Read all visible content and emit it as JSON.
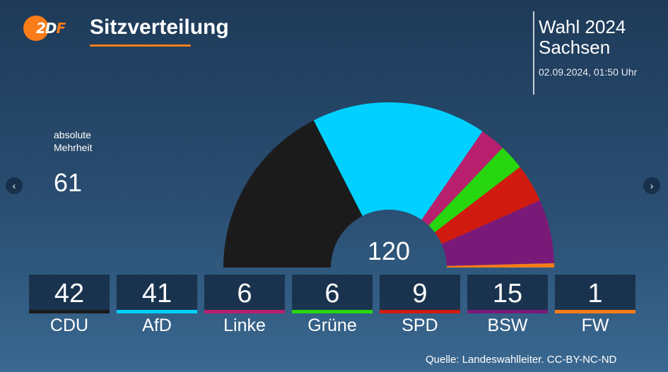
{
  "header": {
    "logo_text": "2DF",
    "title": "Sitzverteilung",
    "election_line1": "Wahl 2024",
    "election_line2": "Sachsen",
    "timestamp": "02.09.2024, 01:50 Uhr"
  },
  "majority": {
    "label_line1": "absolute",
    "label_line2": "Mehrheit",
    "value": "61"
  },
  "nav": {
    "prev_icon": "chevron-left-icon",
    "next_icon": "chevron-right-icon",
    "prev_glyph": "‹",
    "next_glyph": "›"
  },
  "chart_data": {
    "type": "pie",
    "subtype": "parliament-semicircle",
    "total_label": "120",
    "total_seats": 120,
    "categories": [
      "CDU",
      "AfD",
      "Linke",
      "Grüne",
      "SPD",
      "BSW",
      "FW"
    ],
    "values": [
      42,
      41,
      6,
      6,
      9,
      15,
      1
    ],
    "colors": [
      "#1b1b1b",
      "#00d0ff",
      "#b8206e",
      "#27d60f",
      "#d21b10",
      "#7a1a78",
      "#fa7d19"
    ]
  },
  "parties": [
    {
      "name": "CDU",
      "seats": "42",
      "color": "#1b1b1b"
    },
    {
      "name": "AfD",
      "seats": "41",
      "color": "#00d0ff"
    },
    {
      "name": "Linke",
      "seats": "6",
      "color": "#b8206e"
    },
    {
      "name": "Grüne",
      "seats": "6",
      "color": "#27d60f"
    },
    {
      "name": "SPD",
      "seats": "9",
      "color": "#d21b10"
    },
    {
      "name": "BSW",
      "seats": "15",
      "color": "#7a1a78"
    },
    {
      "name": "FW",
      "seats": "1",
      "color": "#fa7d19"
    }
  ],
  "footer": {
    "source": "Quelle: Landeswahlleiter. CC-BY-NC-ND"
  }
}
